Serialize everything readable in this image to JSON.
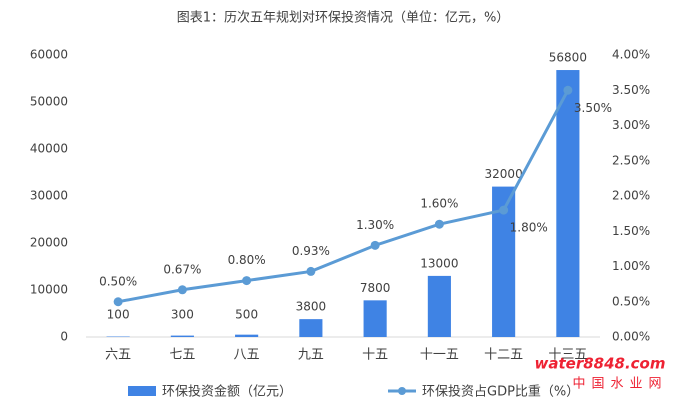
{
  "chart_data": {
    "type": "bar-line",
    "title": "图表1：历次五年规划对环保投资情况（单位：亿元，%）",
    "categories": [
      "六五",
      "七五",
      "八五",
      "九五",
      "十五",
      "十一五",
      "十二五",
      "十三五"
    ],
    "series": [
      {
        "name": "环保投资金额（亿元）",
        "type": "bar",
        "color": "#3f83e4",
        "values": [
          100,
          300,
          500,
          3800,
          7800,
          13000,
          32000,
          56800
        ]
      },
      {
        "name": "环保投资占GDP比重（%）",
        "type": "line",
        "axis": "y2",
        "color": "#5b9bd5",
        "values": [
          0.5,
          0.67,
          0.8,
          0.93,
          1.3,
          1.6,
          1.8,
          3.5
        ],
        "value_labels": [
          "0.50%",
          "0.67%",
          "0.80%",
          "0.93%",
          "1.30%",
          "1.60%",
          "1.80%",
          "3.50%"
        ]
      }
    ],
    "ylim": [
      0,
      60000
    ],
    "yticks": [
      0,
      10000,
      20000,
      30000,
      40000,
      50000,
      60000
    ],
    "y2lim": [
      0,
      4
    ],
    "y2ticks": [
      {
        "value": 0,
        "label": "0.00%"
      },
      {
        "value": 0.5,
        "label": "0.50%"
      },
      {
        "value": 1,
        "label": "1.00%"
      },
      {
        "value": 1.5,
        "label": "1.50%"
      },
      {
        "value": 2,
        "label": "2.00%"
      },
      {
        "value": 2.5,
        "label": "2.50%"
      },
      {
        "value": 3,
        "label": "3.00%"
      },
      {
        "value": 3.5,
        "label": "3.50%"
      },
      {
        "value": 4,
        "label": "4.00%"
      }
    ],
    "grid": false,
    "legend": "bottom",
    "watermark": "water8848.com",
    "watermark_sub": "中国水业网"
  }
}
